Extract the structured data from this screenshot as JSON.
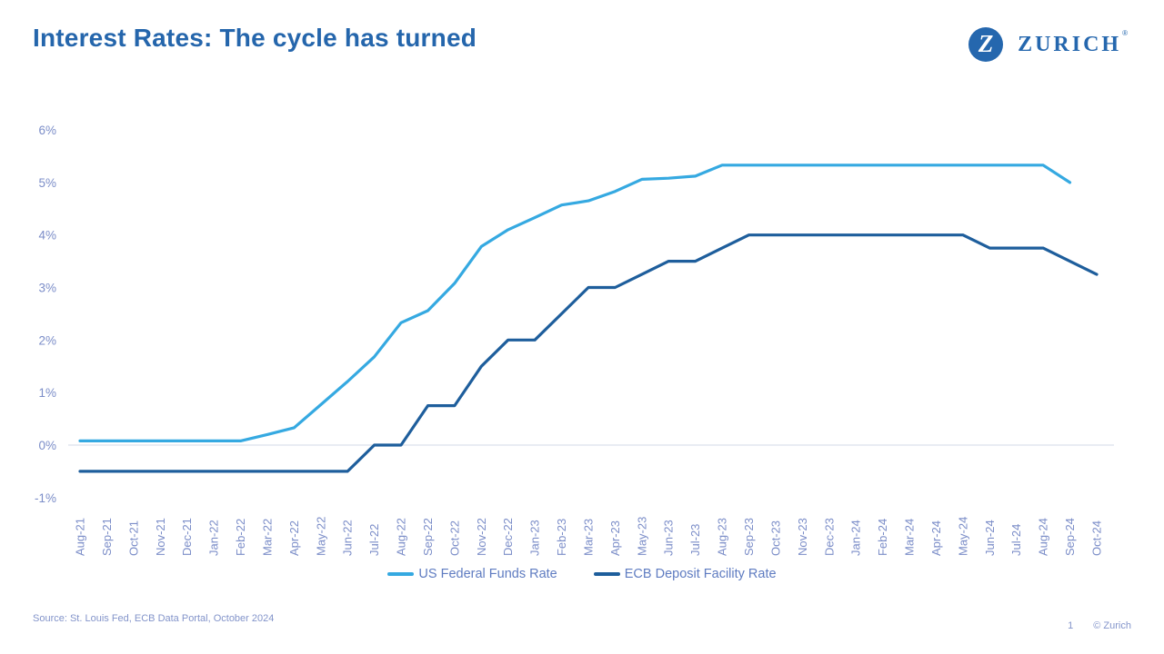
{
  "header": {
    "title": "Interest Rates: The cycle has turned",
    "brand_color": "#2566AC",
    "logo_mark": "Z",
    "logo_text": "ZURICH",
    "registered_mark": "®"
  },
  "chart_data": {
    "type": "line",
    "title": "",
    "xlabel": "",
    "ylabel": "",
    "ylim": [
      -1,
      6
    ],
    "grid": "horizontal line at 0% only",
    "gridline_at": 0,
    "legend_position": "bottom",
    "yticks": [
      {
        "value": 6,
        "label": "6%"
      },
      {
        "value": 5,
        "label": "5%"
      },
      {
        "value": 4,
        "label": "4%"
      },
      {
        "value": 3,
        "label": "3%"
      },
      {
        "value": 2,
        "label": "2%"
      },
      {
        "value": 1,
        "label": "1%"
      },
      {
        "value": 0,
        "label": "0%"
      },
      {
        "value": -1,
        "label": "-1%"
      }
    ],
    "x": [
      "Aug-21",
      "Sep-21",
      "Oct-21",
      "Nov-21",
      "Dec-21",
      "Jan-22",
      "Feb-22",
      "Mar-22",
      "Apr-22",
      "May-22",
      "Jun-22",
      "Jul-22",
      "Aug-22",
      "Sep-22",
      "Oct-22",
      "Nov-22",
      "Dec-22",
      "Jan-23",
      "Feb-23",
      "Mar-23",
      "Apr-23",
      "May-23",
      "Jun-23",
      "Jul-23",
      "Aug-23",
      "Sep-23",
      "Oct-23",
      "Nov-23",
      "Dec-23",
      "Jan-24",
      "Feb-24",
      "Mar-24",
      "Apr-24",
      "May-24",
      "Jun-24",
      "Jul-24",
      "Aug-24",
      "Sep-24",
      "Oct-24"
    ],
    "series": [
      {
        "name": "US Federal Funds Rate",
        "color": "#35A9E1",
        "values": [
          0.08,
          0.08,
          0.08,
          0.08,
          0.08,
          0.08,
          0.08,
          0.2,
          0.33,
          0.77,
          1.21,
          1.68,
          2.33,
          2.56,
          3.08,
          3.78,
          4.1,
          4.33,
          4.57,
          4.65,
          4.83,
          5.06,
          5.08,
          5.12,
          5.33,
          5.33,
          5.33,
          5.33,
          5.33,
          5.33,
          5.33,
          5.33,
          5.33,
          5.33,
          5.33,
          5.33,
          5.33,
          5.0,
          null
        ]
      },
      {
        "name": "ECB Deposit Facility Rate",
        "color": "#1E5E9C",
        "values": [
          -0.5,
          -0.5,
          -0.5,
          -0.5,
          -0.5,
          -0.5,
          -0.5,
          -0.5,
          -0.5,
          -0.5,
          -0.5,
          0.0,
          0.0,
          0.75,
          0.75,
          1.5,
          2.0,
          2.0,
          2.5,
          3.0,
          3.0,
          3.25,
          3.5,
          3.5,
          3.75,
          4.0,
          4.0,
          4.0,
          4.0,
          4.0,
          4.0,
          4.0,
          4.0,
          4.0,
          3.75,
          3.75,
          3.75,
          3.5,
          3.25
        ]
      }
    ]
  },
  "footer": {
    "source": "Source: St. Louis Fed, ECB Data Portal, October 2024",
    "page_number": "1",
    "copyright": "© Zurich"
  }
}
